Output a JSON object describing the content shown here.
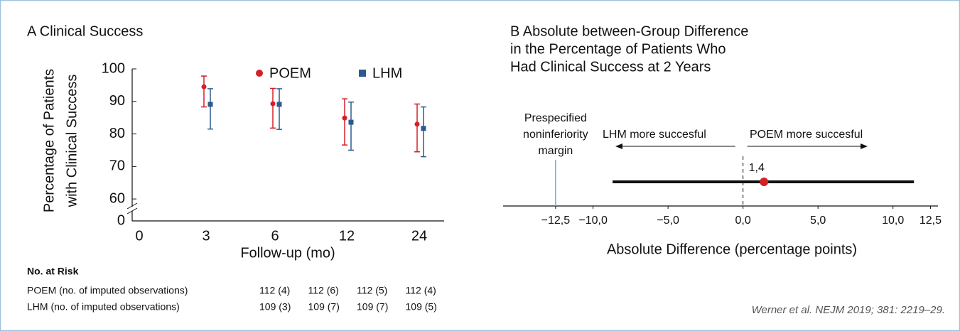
{
  "chart_data": [
    {
      "type": "errorbar",
      "title": "A Clinical Success",
      "x_label": "Follow-up (mo)",
      "y_label": [
        "Percentage of Patients",
        "with Clinical Success"
      ],
      "categories": [
        "0",
        "3",
        "6",
        "12",
        "24"
      ],
      "series": [
        {
          "name": "POEM",
          "color": "#d42027",
          "marker": "circle",
          "values": [
            null,
            94.5,
            89.3,
            84.9,
            83.0
          ],
          "lower": [
            null,
            88.3,
            81.8,
            76.6,
            74.5
          ],
          "upper": [
            null,
            97.8,
            94.0,
            90.8,
            89.2
          ]
        },
        {
          "name": "LHM",
          "color": "#2b5a90",
          "marker": "square",
          "values": [
            null,
            89.1,
            89.1,
            83.6,
            81.7
          ],
          "lower": [
            null,
            81.5,
            81.4,
            75.0,
            73.0
          ],
          "upper": [
            null,
            93.9,
            93.9,
            89.8,
            88.3
          ]
        }
      ],
      "ylim": [
        0,
        100
      ],
      "y_break": [
        0,
        55
      ],
      "yticks": [
        0,
        60,
        70,
        80,
        90,
        100
      ],
      "risk_table": {
        "title": "No. at Risk",
        "rows": [
          {
            "label": "POEM (no. of imputed observations)",
            "cells": [
              "112 (4)",
              "112 (6)",
              "112 (5)",
              "112 (4)"
            ]
          },
          {
            "label": "LHM (no. of imputed observations)",
            "cells": [
              "109 (3)",
              "109 (7)",
              "109 (7)",
              "109 (5)"
            ]
          }
        ]
      }
    },
    {
      "type": "forest",
      "title": [
        "B Absolute between-Group Difference",
        "in the Percentage of Patients Who",
        "Had Clinical Success at 2 Years"
      ],
      "x_label": "Absolute Difference (percentage points)",
      "xlim": [
        -16,
        13
      ],
      "xticks": [
        {
          "value": -12.5,
          "label": "−12,5"
        },
        {
          "value": -10,
          "label": "−10,0"
        },
        {
          "value": -5,
          "label": "−5,0"
        },
        {
          "value": 0,
          "label": "0,0"
        },
        {
          "value": 5,
          "label": "5,0"
        },
        {
          "value": 10,
          "label": "10,0"
        },
        {
          "value": 12.5,
          "label": "12,5"
        }
      ],
      "values": [
        1.4
      ],
      "value_labels": [
        "1,4"
      ],
      "lower": [
        -8.7
      ],
      "upper": [
        11.4
      ],
      "color": "#d42027",
      "margin": {
        "value": -12.5,
        "label": [
          "Prespecified",
          "noninferiority",
          "margin"
        ],
        "color": "#6aaed6"
      },
      "reference_x": 0,
      "arrows": {
        "left": "LHM more succesful",
        "right": "POEM more succesful"
      }
    }
  ],
  "citation": "Werner et al. NEJM 2019; 381: 2219–29."
}
